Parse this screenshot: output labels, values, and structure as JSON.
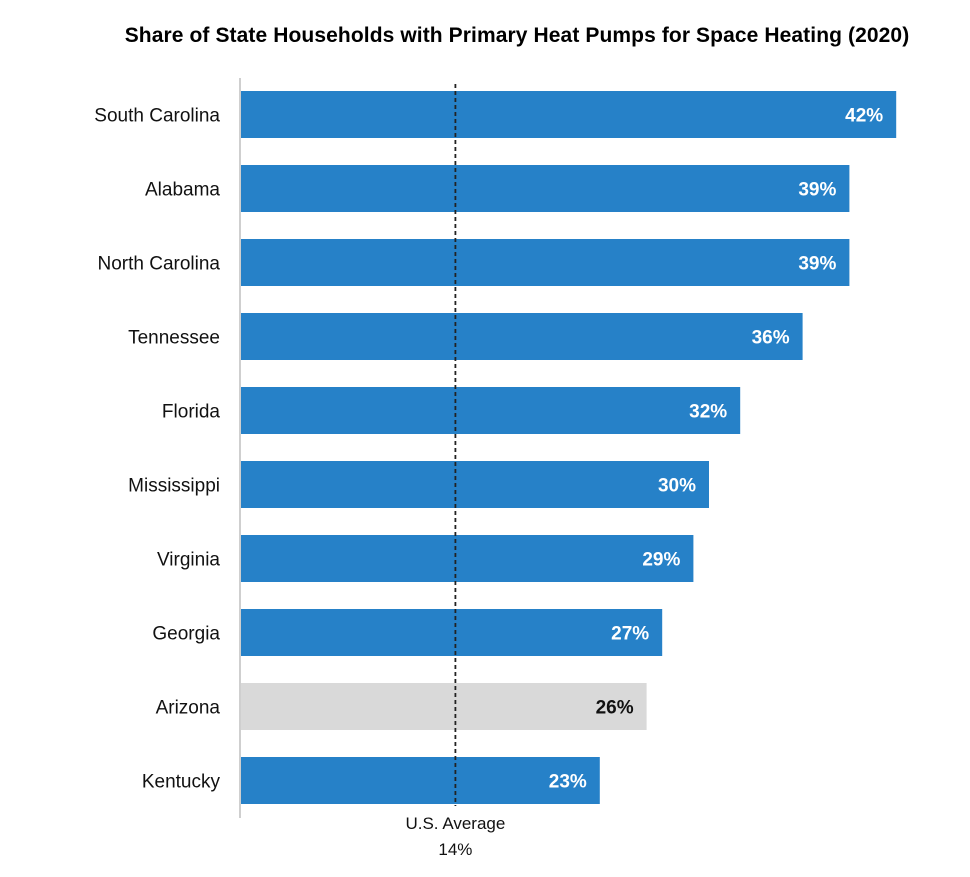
{
  "chart_data": {
    "type": "bar",
    "orientation": "horizontal",
    "title": "Share of State Households with Primary Heat Pumps for Space Heating (2020)",
    "categories": [
      "South Carolina",
      "Alabama",
      "North Carolina",
      "Tennessee",
      "Florida",
      "Mississippi",
      "Virginia",
      "Georgia",
      "Arizona",
      "Kentucky"
    ],
    "values": [
      42,
      39,
      39,
      36,
      32,
      30,
      29,
      27,
      26,
      23
    ],
    "value_labels": [
      "42%",
      "39%",
      "39%",
      "36%",
      "32%",
      "30%",
      "29%",
      "27%",
      "26%",
      "23%"
    ],
    "unit": "%",
    "xlim": [
      0,
      45
    ],
    "grid": false,
    "colors": {
      "default_bar": "#2681C8",
      "highlight_bar": "#D9D9D9",
      "default_label": "#ffffff",
      "highlight_label": "#111111",
      "axis": "#BFBFBF",
      "reference_line": "#222222"
    },
    "highlighted_category": "Arizona",
    "reference_line": {
      "value": 14,
      "label": "U.S. Average",
      "value_label": "14%",
      "style": "dashed"
    }
  }
}
